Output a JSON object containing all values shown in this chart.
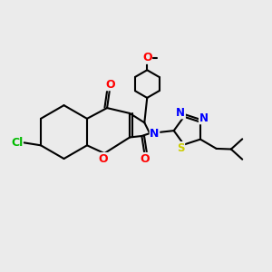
{
  "bg_color": "#ebebeb",
  "bond_color": "#000000",
  "bond_width": 1.5,
  "atom_colors": {
    "O": "#ff0000",
    "N": "#0000ff",
    "S": "#cccc00",
    "Cl": "#00bb00",
    "C": "#000000"
  }
}
